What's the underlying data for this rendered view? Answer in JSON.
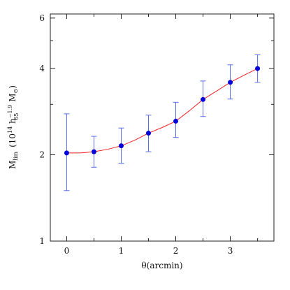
{
  "chart_data": {
    "type": "scatter",
    "xlabel": "θ(arcmin)",
    "ylabel": "M_lim (10^14 h_65^-1.9 M_⊙)",
    "ylabel_parts": {
      "main": "M",
      "main_sub": "lim",
      "paren_open": "(10",
      "exp14": "14",
      "h": " h",
      "h_sub": "65",
      "h_sup": "−1.9",
      "msun": " M",
      "msun_sub": "⊙",
      "paren_close": ")"
    },
    "xlim": [
      -0.3,
      3.8
    ],
    "ylim": [
      1,
      6.2
    ],
    "yscale": "log",
    "x_ticks": [
      0,
      1,
      2,
      3
    ],
    "x_tick_labels": [
      "0",
      "1",
      "2",
      "3"
    ],
    "y_ticks": [
      1,
      2,
      4,
      6
    ],
    "y_tick_labels": [
      "1",
      "2",
      "4",
      "6"
    ],
    "series": [
      {
        "kind": "points",
        "marker_color": "#0000dd",
        "errorbar_color": "#5a6bea",
        "x": [
          0,
          0.5,
          1,
          1.5,
          2,
          2.5,
          3,
          3.5
        ],
        "y": [
          2.03,
          2.05,
          2.15,
          2.38,
          2.62,
          3.12,
          3.58,
          4.0
        ],
        "err_low": [
          0.53,
          0.24,
          0.28,
          0.33,
          0.32,
          0.4,
          0.45,
          0.42
        ],
        "err_high": [
          0.75,
          0.27,
          0.33,
          0.37,
          0.43,
          0.5,
          0.54,
          0.47
        ]
      },
      {
        "kind": "line",
        "color": "#ee2222",
        "x": [
          0,
          0.25,
          0.5,
          0.75,
          1,
          1.25,
          1.5,
          1.75,
          2,
          2.25,
          2.5,
          2.75,
          3,
          3.25,
          3.5
        ],
        "y": [
          2.03,
          2.03,
          2.05,
          2.09,
          2.15,
          2.25,
          2.38,
          2.49,
          2.62,
          2.85,
          3.12,
          3.34,
          3.58,
          3.79,
          4.0
        ]
      }
    ],
    "grid": false
  }
}
